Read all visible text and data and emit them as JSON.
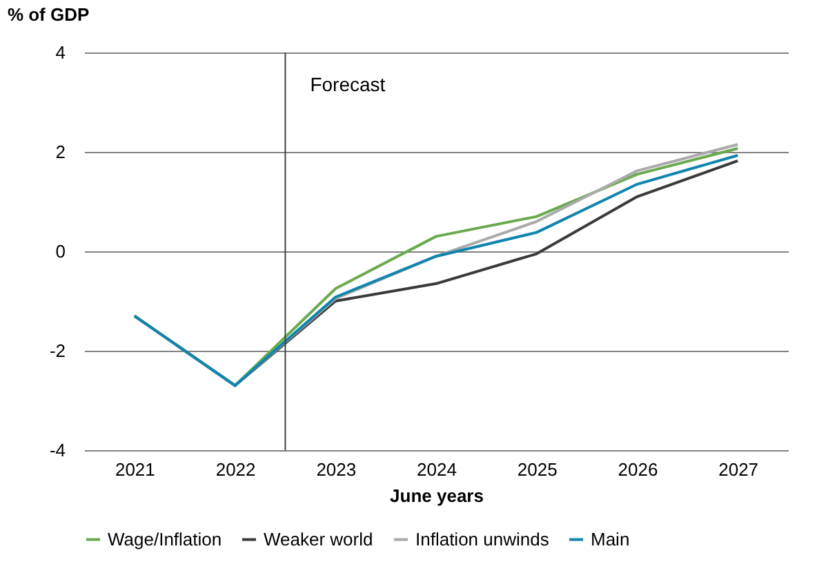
{
  "chart_data": {
    "type": "line",
    "ylabel": "% of GDP",
    "xlabel": "June years",
    "x": [
      2021,
      2022,
      2023,
      2024,
      2025,
      2026,
      2027
    ],
    "xlim": [
      2020.5,
      2027.5
    ],
    "xticks": [
      2021,
      2022,
      2023,
      2024,
      2025,
      2026,
      2027
    ],
    "ylim": [
      -4,
      4
    ],
    "yticks": [
      -4,
      -2,
      0,
      2,
      4
    ],
    "grid": "y",
    "legend": "bottom",
    "marker": "none",
    "line_style": "solid",
    "ref_lines": [
      {
        "axis": "x",
        "value": 2022.5,
        "label": "Forecast",
        "color": "#404040"
      }
    ],
    "series": [
      {
        "name": "Wage/Inflation",
        "color": "#6aaa4f",
        "values": [
          -1.3,
          -2.7,
          -0.75,
          0.3,
          0.7,
          1.55,
          2.07
        ]
      },
      {
        "name": "Weaker world",
        "color": "#3a3a3a",
        "values": [
          -1.3,
          -2.7,
          -1.0,
          -0.65,
          -0.05,
          1.1,
          1.82
        ]
      },
      {
        "name": "Inflation unwinds",
        "color": "#aaaaaa",
        "values": [
          -1.3,
          -2.7,
          -0.95,
          -0.1,
          0.6,
          1.62,
          2.15
        ]
      },
      {
        "name": "Main",
        "color": "#0f85ad",
        "values": [
          -1.3,
          -2.7,
          -0.92,
          -0.1,
          0.38,
          1.35,
          1.93
        ]
      }
    ]
  }
}
